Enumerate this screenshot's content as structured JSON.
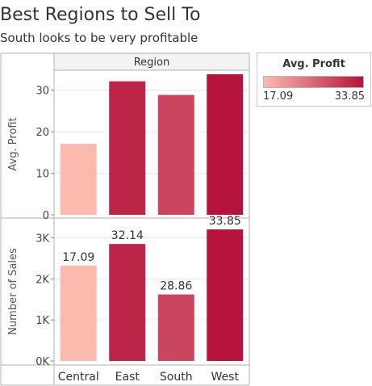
{
  "title": "Best Regions to Sell To",
  "subtitle": "South looks to be very profitable",
  "colors": {
    "low": "#fcbaae",
    "high": "#b5143c",
    "gridline": "#e6e6e6",
    "border": "#b0b0b0",
    "header_bg": "#f3f3f3"
  },
  "legend": {
    "title": "Avg. Profit",
    "min_label": "17.09",
    "max_label": "33.85"
  },
  "chart_data": [
    {
      "type": "bar",
      "column_header": "Region",
      "categories": [
        "Central",
        "East",
        "South",
        "West"
      ],
      "values": [
        17.09,
        32.14,
        28.86,
        33.85
      ],
      "ylabel": "Avg. Profit",
      "ylim": [
        0,
        34.8
      ],
      "yticks": [
        0,
        10,
        20,
        30
      ],
      "ytick_labels": [
        "0",
        "10",
        "20",
        "30"
      ]
    },
    {
      "type": "bar",
      "categories": [
        "Central",
        "East",
        "South",
        "West"
      ],
      "values": [
        2323,
        2848,
        1620,
        3203
      ],
      "data_labels": [
        "17.09",
        "32.14",
        "28.86",
        "33.85"
      ],
      "ylabel": "Number of Sales",
      "ylim": [
        0,
        3480
      ],
      "yticks": [
        0,
        1000,
        2000,
        3000
      ],
      "ytick_labels": [
        "0K",
        "1K",
        "2K",
        "3K"
      ]
    }
  ]
}
